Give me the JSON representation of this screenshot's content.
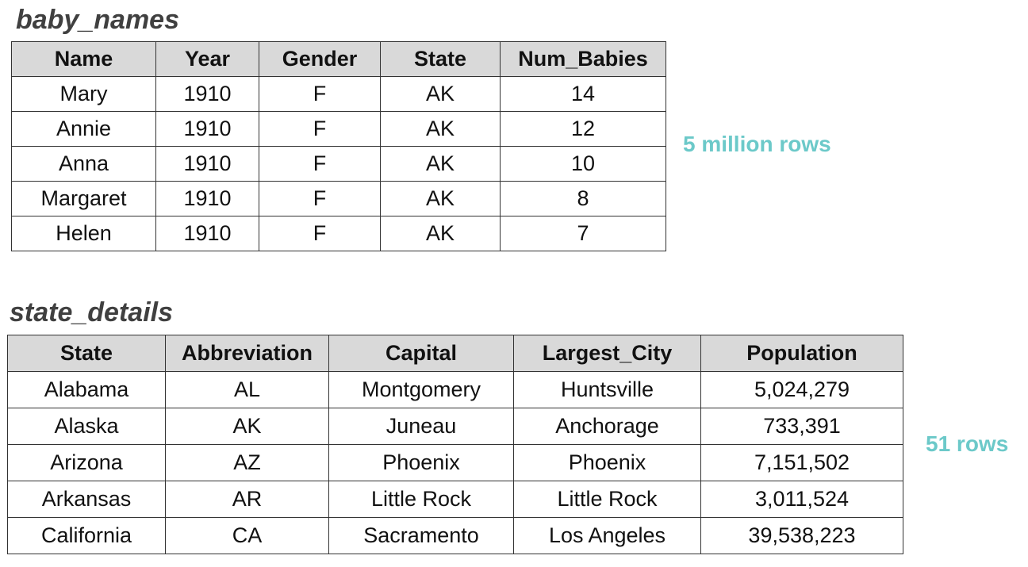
{
  "colors": {
    "accent": "#6cc9c9",
    "header_bg": "#d9d9d9",
    "title_text": "#404040"
  },
  "baby_names": {
    "title": "baby_names",
    "row_count_label": "5 million rows",
    "columns": [
      "Name",
      "Year",
      "Gender",
      "State",
      "Num_Babies"
    ],
    "rows": [
      [
        "Mary",
        "1910",
        "F",
        "AK",
        "14"
      ],
      [
        "Annie",
        "1910",
        "F",
        "AK",
        "12"
      ],
      [
        "Anna",
        "1910",
        "F",
        "AK",
        "10"
      ],
      [
        "Margaret",
        "1910",
        "F",
        "AK",
        "8"
      ],
      [
        "Helen",
        "1910",
        "F",
        "AK",
        "7"
      ]
    ]
  },
  "state_details": {
    "title": "state_details",
    "row_count_label": "51 rows",
    "columns": [
      "State",
      "Abbreviation",
      "Capital",
      "Largest_City",
      "Population"
    ],
    "rows": [
      [
        "Alabama",
        "AL",
        "Montgomery",
        "Huntsville",
        "5,024,279"
      ],
      [
        "Alaska",
        "AK",
        "Juneau",
        "Anchorage",
        "733,391"
      ],
      [
        "Arizona",
        "AZ",
        "Phoenix",
        "Phoenix",
        "7,151,502"
      ],
      [
        "Arkansas",
        "AR",
        "Little Rock",
        "Little Rock",
        "3,011,524"
      ],
      [
        "California",
        "CA",
        "Sacramento",
        "Los Angeles",
        "39,538,223"
      ]
    ]
  }
}
